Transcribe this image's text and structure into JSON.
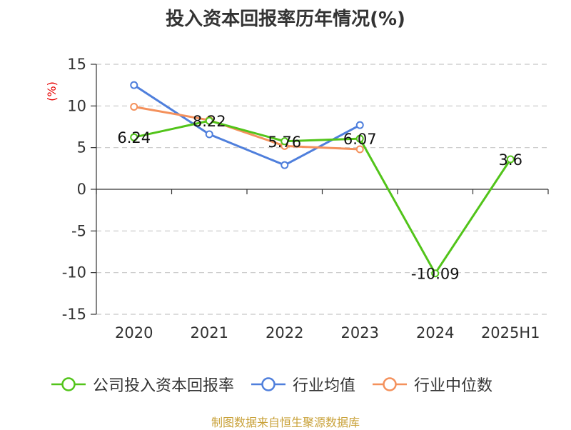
{
  "chart_data": {
    "type": "line",
    "title": "投入资本回报率历年情况(%)",
    "ylabel": "(%)",
    "ylim": [
      -15,
      15
    ],
    "yticks": [
      15,
      10,
      5,
      0,
      -5,
      -10,
      -15
    ],
    "categories": [
      "2020",
      "2021",
      "2022",
      "2023",
      "2024",
      "2025H1"
    ],
    "grid": "horizontal dashed",
    "legend": "bottom",
    "series": [
      {
        "name": "公司投入资本回报率",
        "color": "#52c41a",
        "values": [
          6.24,
          8.22,
          5.76,
          6.07,
          -10.09,
          3.6
        ],
        "labels": [
          "6.24",
          "8.22",
          "5.76",
          "6.07",
          "-10.09",
          "3.6"
        ]
      },
      {
        "name": "行业均值",
        "color": "#4f7fdc",
        "values": [
          12.5,
          6.6,
          2.9,
          7.7,
          null,
          null
        ]
      },
      {
        "name": "行业中位数",
        "color": "#f4915c",
        "values": [
          9.9,
          8.3,
          5.2,
          4.8,
          null,
          null
        ]
      }
    ]
  },
  "source": "制图数据来自恒生聚源数据库"
}
